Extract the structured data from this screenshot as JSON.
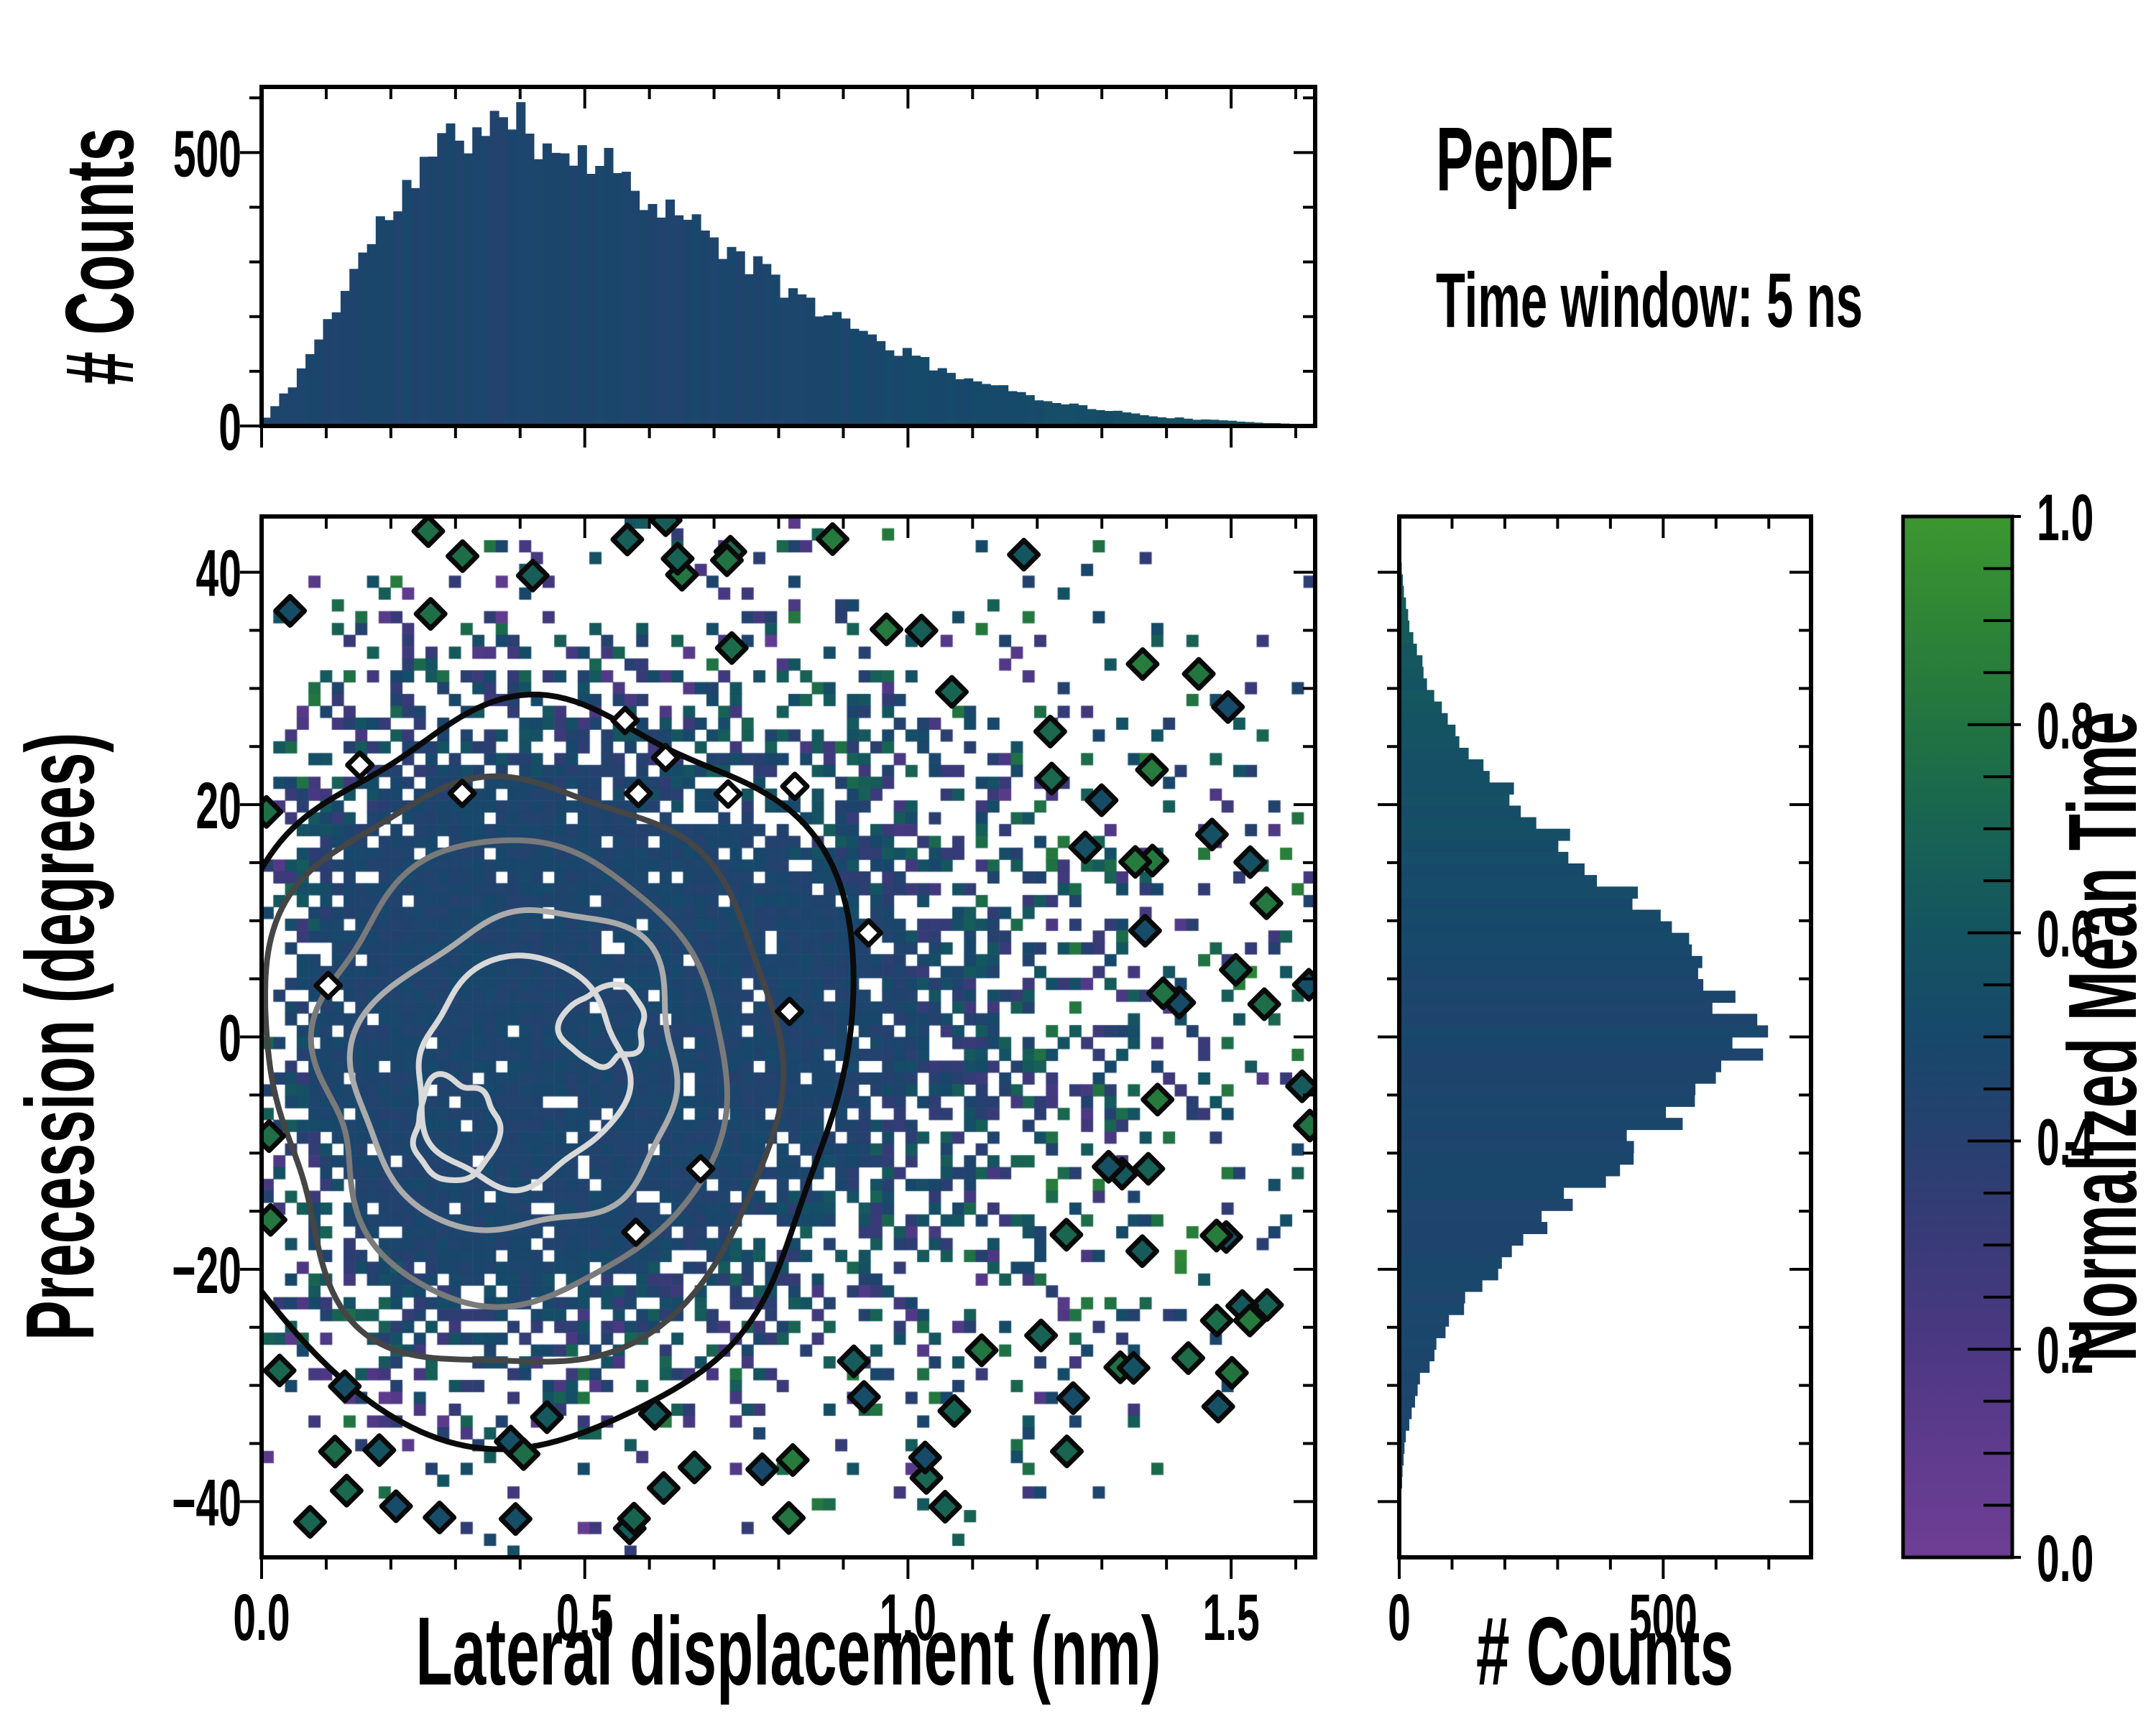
{
  "title": "PepDF",
  "subtitle": "Time window: 5 ns",
  "colors": {
    "axis": "#000000",
    "background": "#ffffff",
    "base_bar_tint": 0.46,
    "colormap_stops": [
      [
        0.0,
        "#6e3e95"
      ],
      [
        0.1,
        "#5f3b8e"
      ],
      [
        0.2,
        "#4c3883"
      ],
      [
        0.3,
        "#3a3a78"
      ],
      [
        0.4,
        "#27406f"
      ],
      [
        0.5,
        "#17486b"
      ],
      [
        0.6,
        "#145461"
      ],
      [
        0.7,
        "#186353"
      ],
      [
        0.8,
        "#217441"
      ],
      [
        0.9,
        "#2e8536"
      ],
      [
        1.0,
        "#3d9730"
      ]
    ],
    "contour_levels": [
      "#0a0a0a",
      "#454545",
      "#7a7a7a",
      "#ababab",
      "#d9d9d9"
    ]
  },
  "chart_data": [
    {
      "id": "top_histogram",
      "type": "bar",
      "orientation": "vertical",
      "ylabel": "# Counts",
      "x_range": [
        0,
        1.63
      ],
      "ylim": [
        0,
        620
      ],
      "ytick_values": [
        0,
        500
      ],
      "ytick_labels": [
        "0",
        "500"
      ],
      "y_minor_step": 100,
      "x_minor_step": 0.1,
      "bins": 120,
      "noise": 0.09,
      "seed": 11,
      "peak": {
        "x": 0.36,
        "count": 555
      },
      "envelope": [
        [
          0.0,
          5
        ],
        [
          0.05,
          80
        ],
        [
          0.1,
          185
        ],
        [
          0.15,
          300
        ],
        [
          0.2,
          395
        ],
        [
          0.25,
          470
        ],
        [
          0.3,
          530
        ],
        [
          0.35,
          555
        ],
        [
          0.4,
          545
        ],
        [
          0.45,
          520
        ],
        [
          0.5,
          500
        ],
        [
          0.55,
          470
        ],
        [
          0.6,
          425
        ],
        [
          0.65,
          380
        ],
        [
          0.7,
          340
        ],
        [
          0.75,
          300
        ],
        [
          0.8,
          260
        ],
        [
          0.85,
          225
        ],
        [
          0.9,
          190
        ],
        [
          0.95,
          160
        ],
        [
          1.0,
          130
        ],
        [
          1.05,
          105
        ],
        [
          1.1,
          85
        ],
        [
          1.15,
          68
        ],
        [
          1.2,
          52
        ],
        [
          1.25,
          40
        ],
        [
          1.3,
          30
        ],
        [
          1.35,
          22
        ],
        [
          1.4,
          16
        ],
        [
          1.45,
          12
        ],
        [
          1.5,
          9
        ],
        [
          1.55,
          6
        ],
        [
          1.6,
          4
        ],
        [
          1.63,
          3
        ]
      ]
    },
    {
      "id": "joint_heatmap",
      "type": "heatmap",
      "xlabel": "Lateral displacement (nm)",
      "ylabel": "Precession (degrees)",
      "x_range": [
        0,
        1.63
      ],
      "y_range": [
        -44.8,
        44.8
      ],
      "xtick_values": [
        0,
        0.5,
        1.0,
        1.5
      ],
      "xtick_labels": [
        "0.0",
        "0.5",
        "1.0",
        "1.5"
      ],
      "ytick_values": [
        40,
        20,
        0,
        -20,
        -40
      ],
      "ytick_labels": [
        "40",
        "20",
        "0",
        "−20",
        "−40"
      ],
      "x_minor_step": 0.1,
      "y_minor_step": 5,
      "grid": {
        "nx": 90,
        "ny": 88
      },
      "seed": 7,
      "value_center": 0.46,
      "value_spread_edge": 0.75,
      "hole_fraction": 0.06,
      "contours": {
        "center": [
          0.4,
          -3
        ],
        "semi_axes_nm": [
          0.52,
          0.415,
          0.325,
          0.245,
          0.165
        ],
        "semi_axes_deg": [
          31,
          24.5,
          19,
          14,
          9.3
        ],
        "wiggle": 0.09,
        "inner_blobs": [
          {
            "center": [
              0.3,
              -8
            ],
            "rx_nm": 0.07,
            "ry_deg": 4.0
          },
          {
            "center": [
              0.53,
              1
            ],
            "rx_nm": 0.06,
            "ry_deg": 3.5
          }
        ]
      },
      "isolated_outlined_cells": 88,
      "white_hole_diamonds": 12,
      "description": "2D histogram of precession vs lateral displacement, colored by normalized mean time (mostly ~0.45 dark blue in dense core, purple/green scatter at low-density rim), with 5 nested density contours from black (outer) to near-white (inner)."
    },
    {
      "id": "right_histogram",
      "type": "bar",
      "orientation": "horizontal",
      "xlabel": "# Counts",
      "y_range": [
        -44.8,
        44.8
      ],
      "xlim": [
        0,
        780
      ],
      "xtick_values": [
        0,
        500
      ],
      "xtick_labels": [
        "0",
        "500"
      ],
      "x_minor_step": 100,
      "y_minor_step": 5,
      "bins": 90,
      "noise": 0.09,
      "seed": 13,
      "peak": {
        "degrees": -3,
        "count": 655
      },
      "envelope": [
        [
          -45,
          0
        ],
        [
          -40,
          3
        ],
        [
          -35,
          10
        ],
        [
          -30,
          35
        ],
        [
          -25,
          90
        ],
        [
          -20,
          180
        ],
        [
          -15,
          300
        ],
        [
          -10,
          430
        ],
        [
          -5,
          560
        ],
        [
          -2,
          640
        ],
        [
          0,
          650
        ],
        [
          2,
          645
        ],
        [
          5,
          600
        ],
        [
          8,
          540
        ],
        [
          10,
          490
        ],
        [
          15,
          360
        ],
        [
          20,
          230
        ],
        [
          25,
          130
        ],
        [
          30,
          60
        ],
        [
          35,
          22
        ],
        [
          38,
          10
        ],
        [
          40,
          5
        ],
        [
          45,
          1
        ]
      ]
    },
    {
      "id": "colorbar",
      "type": "colorbar",
      "label": "Normalized Mean Time",
      "range": [
        0,
        1
      ],
      "tick_values": [
        0.0,
        0.2,
        0.4,
        0.6,
        0.8,
        1.0
      ],
      "tick_labels": [
        "0.0",
        "0.2",
        "0.4",
        "0.6",
        "0.8",
        "1.0"
      ],
      "minor_step": 0.05
    }
  ]
}
